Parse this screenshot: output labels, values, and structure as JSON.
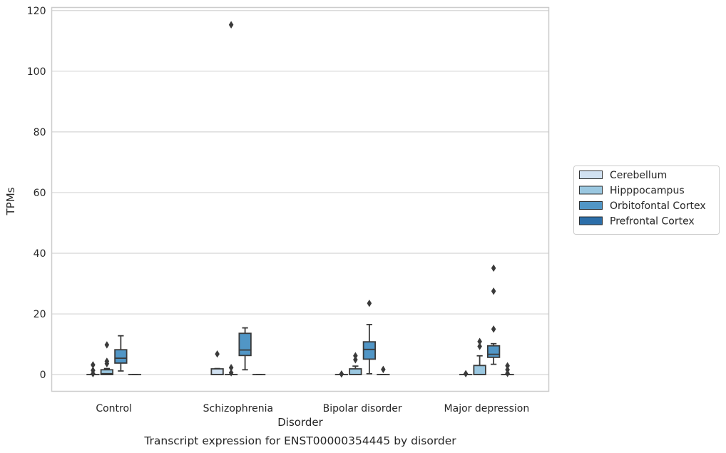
{
  "chart_data": {
    "type": "box",
    "title": "",
    "caption": "Transcript expression for ENST00000354445 by disorder",
    "xlabel": "Disorder",
    "ylabel": "TPMs",
    "ylim": [
      -5.5,
      121
    ],
    "yticks": [
      0,
      20,
      40,
      60,
      80,
      100,
      120
    ],
    "grid": "horizontal",
    "legend_position": "right",
    "categories": [
      "Control",
      "Schizophrenia",
      "Bipolar disorder",
      "Major depression"
    ],
    "series": [
      {
        "name": "Cerebellum",
        "color": "#d1e1f1",
        "boxes": [
          {
            "whislo": 0,
            "q1": 0,
            "med": 0,
            "q3": 0,
            "whishi": 0,
            "fliers": [
              0.3,
              1.4,
              3.2
            ]
          },
          {
            "whislo": 0,
            "q1": 0,
            "med": 0,
            "q3": 1.9,
            "whishi": 2.0,
            "fliers": [
              6.8
            ]
          },
          {
            "whislo": 0,
            "q1": 0,
            "med": 0,
            "q3": 0,
            "whishi": 0,
            "fliers": [
              0.2
            ]
          },
          {
            "whislo": 0,
            "q1": 0,
            "med": 0,
            "q3": 0,
            "whishi": 0,
            "fliers": [
              0.3
            ]
          }
        ]
      },
      {
        "name": "Hipppocampus",
        "color": "#9ac7e0",
        "boxes": [
          {
            "whislo": 0,
            "q1": 0,
            "med": 0.3,
            "q3": 1.6,
            "whishi": 2.0,
            "fliers": [
              3.6,
              4.4,
              9.8
            ]
          },
          {
            "whislo": 0,
            "q1": 0,
            "med": 0,
            "q3": 0,
            "whishi": 0,
            "fliers": [
              0.6,
              2.3,
              115.3
            ]
          },
          {
            "whislo": 0,
            "q1": 0,
            "med": 0,
            "q3": 1.9,
            "whishi": 2.8,
            "fliers": [
              4.9,
              6.2
            ]
          },
          {
            "whislo": 0,
            "q1": 0,
            "med": 0,
            "q3": 3.0,
            "whishi": 6.2,
            "fliers": [
              9.3,
              10.9
            ]
          }
        ]
      },
      {
        "name": "Orbitofontal Cortex",
        "color": "#5196c6",
        "boxes": [
          {
            "whislo": 1.2,
            "q1": 3.8,
            "med": 5.4,
            "q3": 8.2,
            "whishi": 12.8,
            "fliers": []
          },
          {
            "whislo": 1.6,
            "q1": 6.3,
            "med": 8.1,
            "q3": 13.6,
            "whishi": 15.4,
            "fliers": []
          },
          {
            "whislo": 0.3,
            "q1": 5.1,
            "med": 8.3,
            "q3": 10.8,
            "whishi": 16.5,
            "fliers": [
              23.5
            ]
          },
          {
            "whislo": 3.4,
            "q1": 5.7,
            "med": 6.7,
            "q3": 9.5,
            "whishi": 10.2,
            "fliers": [
              15.0,
              27.5,
              35.1
            ]
          }
        ]
      },
      {
        "name": "Prefrontal Cortex",
        "color": "#2c6ea9",
        "boxes": [
          {
            "whislo": 0,
            "q1": 0,
            "med": 0,
            "q3": 0,
            "whishi": 0,
            "fliers": []
          },
          {
            "whislo": 0,
            "q1": 0,
            "med": 0,
            "q3": 0,
            "whishi": 0,
            "fliers": []
          },
          {
            "whislo": 0,
            "q1": 0,
            "med": 0,
            "q3": 0,
            "whishi": 0,
            "fliers": [
              1.7
            ]
          },
          {
            "whislo": 0,
            "q1": 0,
            "med": 0,
            "q3": 0,
            "whishi": 0,
            "fliers": [
              0.4,
              1.6,
              2.9
            ]
          }
        ]
      }
    ]
  }
}
